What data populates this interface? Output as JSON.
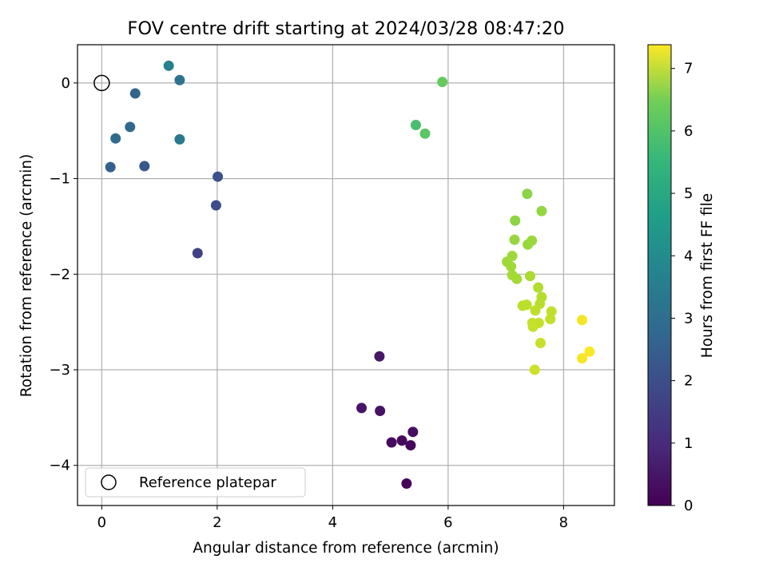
{
  "chart_data": {
    "type": "scatter",
    "title": "FOV centre drift starting at 2024/03/28 08:47:20",
    "xlabel": "Angular distance from reference (arcmin)",
    "ylabel": "Rotation from reference (arcmin)",
    "xlim": [
      -0.42,
      8.88
    ],
    "ylim": [
      -4.42,
      0.4
    ],
    "xticks": [
      0,
      2,
      4,
      6,
      8
    ],
    "yticks": [
      0,
      -1,
      -2,
      -3,
      -4
    ],
    "grid": true,
    "colormap": "viridis",
    "colorbar": {
      "label": "Hours from first FF file",
      "range": [
        0,
        7.38
      ],
      "ticks": [
        0,
        1,
        2,
        3,
        4,
        5,
        6,
        7
      ]
    },
    "reference": {
      "name": "Reference platepar",
      "x": 0,
      "y": 0
    },
    "legend": {
      "entries": [
        "Reference platepar"
      ],
      "placement": "lower left"
    },
    "points": [
      {
        "x": 5.28,
        "y": -4.19,
        "c": 0.05
      },
      {
        "x": 5.35,
        "y": -3.79,
        "c": 0.12
      },
      {
        "x": 5.2,
        "y": -3.74,
        "c": 0.18
      },
      {
        "x": 5.02,
        "y": -3.76,
        "c": 0.22
      },
      {
        "x": 5.39,
        "y": -3.65,
        "c": 0.28
      },
      {
        "x": 4.82,
        "y": -3.43,
        "c": 0.35
      },
      {
        "x": 4.5,
        "y": -3.4,
        "c": 0.4
      },
      {
        "x": 4.81,
        "y": -2.86,
        "c": 0.48
      },
      {
        "x": 1.66,
        "y": -1.78,
        "c": 1.45
      },
      {
        "x": 1.98,
        "y": -1.28,
        "c": 1.75
      },
      {
        "x": 2.01,
        "y": -0.98,
        "c": 1.85
      },
      {
        "x": 0.74,
        "y": -0.87,
        "c": 2.05
      },
      {
        "x": 0.15,
        "y": -0.88,
        "c": 2.25
      },
      {
        "x": 0.58,
        "y": -0.11,
        "c": 2.35
      },
      {
        "x": 0.49,
        "y": -0.46,
        "c": 2.45
      },
      {
        "x": 0.24,
        "y": -0.58,
        "c": 2.55
      },
      {
        "x": 1.35,
        "y": 0.03,
        "c": 2.85
      },
      {
        "x": 1.35,
        "y": -0.59,
        "c": 2.95
      },
      {
        "x": 1.16,
        "y": 0.18,
        "c": 3.25
      },
      {
        "x": 5.44,
        "y": -0.44,
        "c": 5.2
      },
      {
        "x": 5.6,
        "y": -0.53,
        "c": 5.45
      },
      {
        "x": 5.9,
        "y": 0.01,
        "c": 5.6
      },
      {
        "x": 7.37,
        "y": -1.16,
        "c": 6.05
      },
      {
        "x": 7.16,
        "y": -1.44,
        "c": 6.1
      },
      {
        "x": 7.62,
        "y": -1.34,
        "c": 6.15
      },
      {
        "x": 7.15,
        "y": -1.64,
        "c": 6.2
      },
      {
        "x": 7.38,
        "y": -1.69,
        "c": 6.22
      },
      {
        "x": 7.45,
        "y": -1.65,
        "c": 6.25
      },
      {
        "x": 7.11,
        "y": -1.81,
        "c": 6.28
      },
      {
        "x": 7.02,
        "y": -1.87,
        "c": 6.3
      },
      {
        "x": 7.09,
        "y": -1.92,
        "c": 6.33
      },
      {
        "x": 7.11,
        "y": -2.01,
        "c": 6.36
      },
      {
        "x": 7.19,
        "y": -2.05,
        "c": 6.38
      },
      {
        "x": 7.42,
        "y": -2.02,
        "c": 6.42
      },
      {
        "x": 7.56,
        "y": -2.14,
        "c": 6.5
      },
      {
        "x": 7.62,
        "y": -2.24,
        "c": 6.55
      },
      {
        "x": 7.59,
        "y": -2.31,
        "c": 6.58
      },
      {
        "x": 7.29,
        "y": -2.33,
        "c": 6.62
      },
      {
        "x": 7.36,
        "y": -2.32,
        "c": 6.64
      },
      {
        "x": 7.51,
        "y": -2.38,
        "c": 6.66
      },
      {
        "x": 7.79,
        "y": -2.39,
        "c": 6.68
      },
      {
        "x": 7.77,
        "y": -2.47,
        "c": 6.7
      },
      {
        "x": 7.46,
        "y": -2.51,
        "c": 6.72
      },
      {
        "x": 7.57,
        "y": -2.51,
        "c": 6.74
      },
      {
        "x": 7.47,
        "y": -2.55,
        "c": 6.76
      },
      {
        "x": 7.6,
        "y": -2.72,
        "c": 6.78
      },
      {
        "x": 7.5,
        "y": -3.0,
        "c": 6.82
      },
      {
        "x": 8.32,
        "y": -2.48,
        "c": 7.25
      },
      {
        "x": 8.32,
        "y": -2.88,
        "c": 7.3
      },
      {
        "x": 8.45,
        "y": -2.81,
        "c": 7.35
      }
    ]
  }
}
